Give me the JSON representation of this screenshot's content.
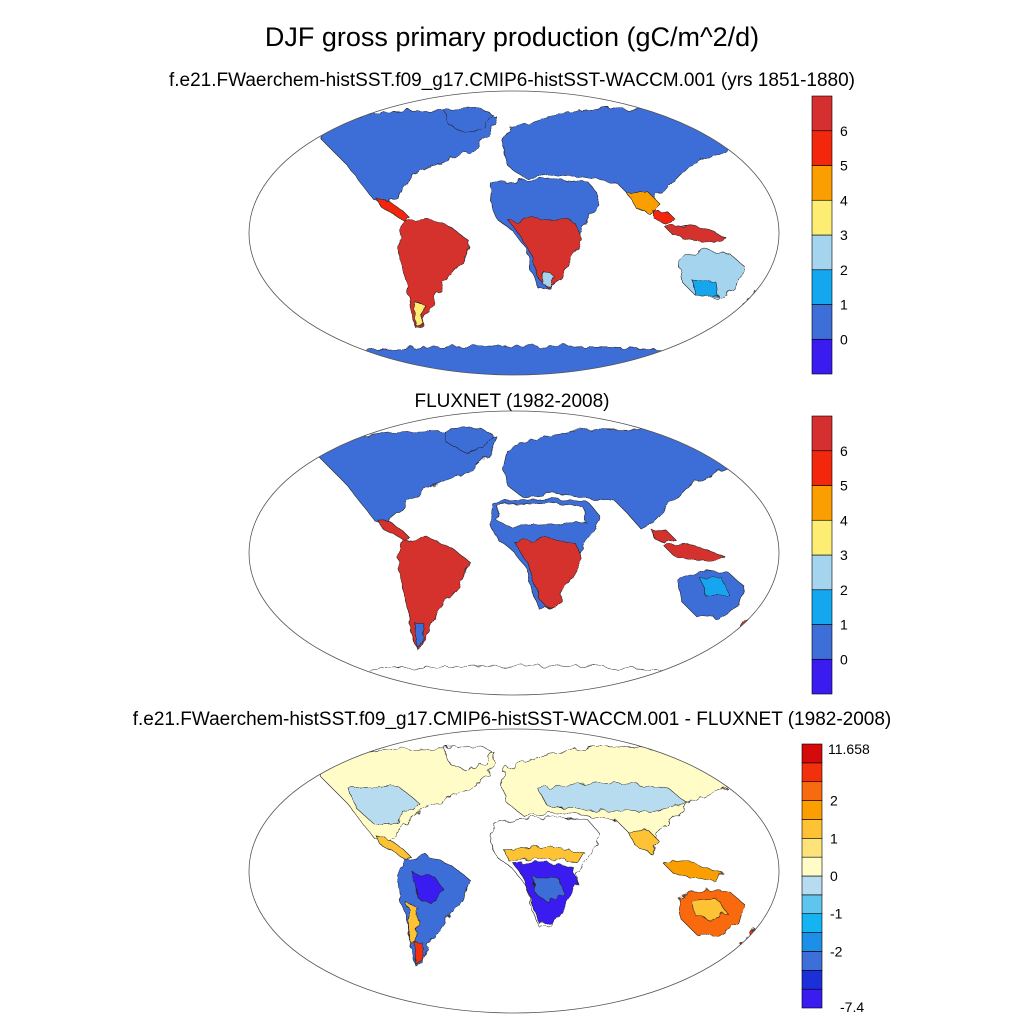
{
  "figure": {
    "main_title": "DJF gross primary production (gC/m^2/d)",
    "panels": [
      {
        "title": "f.e21.FWaerchem-histSST.f09_g17.CMIP6-histSST-WACCM.001 (yrs 1851-1880)",
        "colorbar": {
          "levels": 9,
          "colors": [
            "#3a1bf0",
            "#3e6ed8",
            "#15a6f0",
            "#a4d4ee",
            "#fdee73",
            "#fb9e00",
            "#f3270c",
            "#d5302f"
          ],
          "tick_labels": [
            "0",
            "1",
            "2",
            "3",
            "4",
            "5",
            "6"
          ]
        }
      },
      {
        "title": "FLUXNET (1982-2008)",
        "colorbar": {
          "levels": 9,
          "colors": [
            "#3a1bf0",
            "#3e6ed8",
            "#15a6f0",
            "#a4d4ee",
            "#fdee73",
            "#fb9e00",
            "#f3270c",
            "#d5302f"
          ],
          "tick_labels": [
            "0",
            "1",
            "2",
            "3",
            "4",
            "5",
            "6"
          ]
        }
      },
      {
        "title": "f.e21.FWaerchem-histSST.f09_g17.CMIP6-histSST-WACCM.001 - FLUXNET (1982-2008)",
        "colorbar": {
          "colors": [
            "#3a1bf0",
            "#1b30d8",
            "#3e6ed8",
            "#1c8fe8",
            "#15b3f2",
            "#5fc5ee",
            "#b7dcef",
            "#fffcc8",
            "#fde37a",
            "#fdc335",
            "#fb9e00",
            "#f86a10",
            "#f3300c",
            "#d50a0a"
          ],
          "top_label": "11.658",
          "bottom_label": "-7.4",
          "tick_labels": [
            "2",
            "1",
            "0",
            "-1",
            "-2"
          ]
        }
      }
    ]
  }
}
